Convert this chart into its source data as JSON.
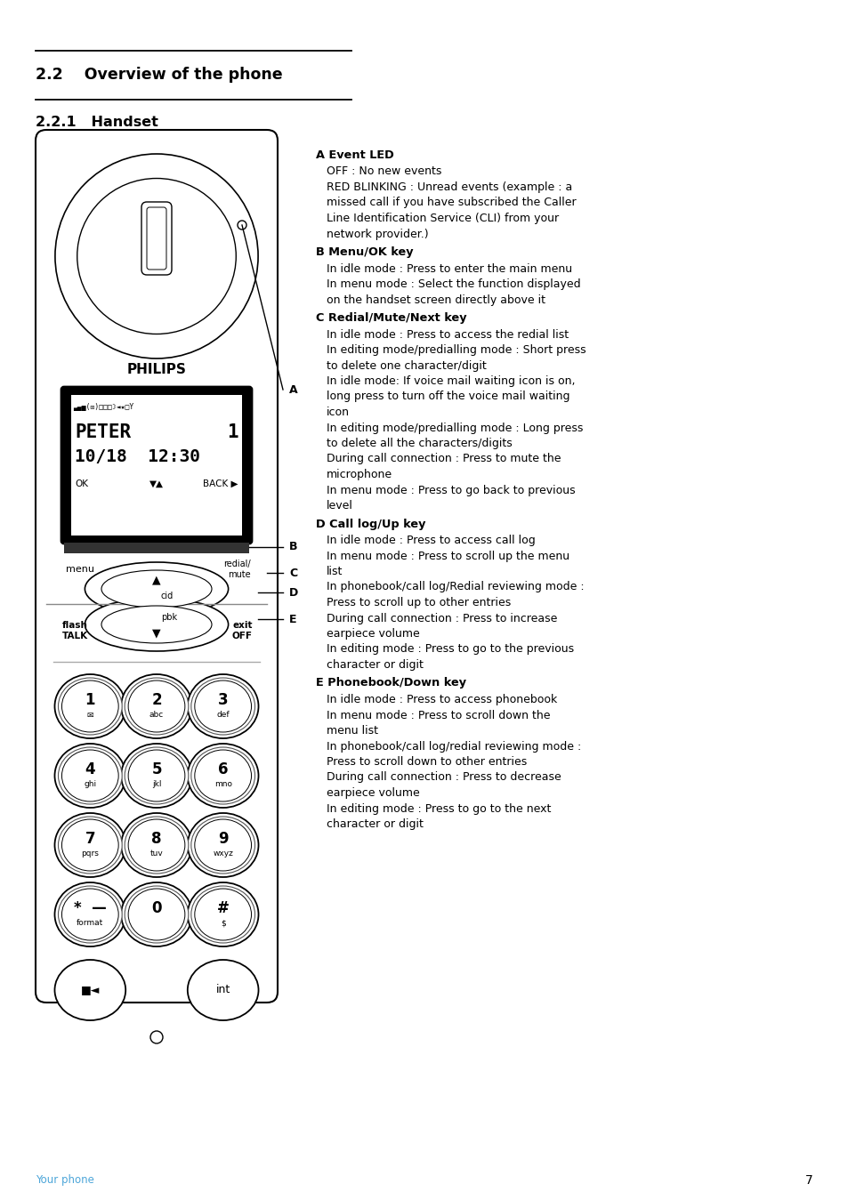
{
  "bg_color": "#ffffff",
  "title_section": "2.2    Overview of the phone",
  "subtitle_section": "2.2.1   Handset",
  "footer_text": "Your phone",
  "footer_color": "#4da6d9",
  "page_number": "7",
  "sections": [
    {
      "key": "A",
      "header": "A Event LED",
      "lines": [
        "OFF : No new events",
        "RED BLINKING : Unread events (example : a",
        "missed call if you have subscribed the Caller",
        "Line Identification Service (CLI) from your",
        "network provider.)"
      ]
    },
    {
      "key": "B",
      "header": "B Menu/OK key",
      "lines": [
        "In idle mode : Press to enter the main menu",
        "In menu mode : Select the function displayed",
        "on the handset screen directly above it"
      ]
    },
    {
      "key": "C",
      "header": "C Redial/Mute/Next key",
      "lines": [
        "In idle mode : Press to access the redial list",
        "In editing mode/predialling mode : Short press",
        "to delete one character/digit",
        "In idle mode: If voice mail waiting icon is on,",
        "long press to turn off the voice mail waiting",
        "icon",
        "In editing mode/predialling mode : Long press",
        "to delete all the characters/digits",
        "During call connection : Press to mute the",
        "microphone",
        "In menu mode : Press to go back to previous",
        "level"
      ]
    },
    {
      "key": "D",
      "header": "D Call log/Up key",
      "lines": [
        "In idle mode : Press to access call log",
        "In menu mode : Press to scroll up the menu",
        "list",
        "In phonebook/call log/Redial reviewing mode :",
        "Press to scroll up to other entries",
        "During call connection : Press to increase",
        "earpiece volume",
        "In editing mode : Press to go to the previous",
        "character or digit"
      ]
    },
    {
      "key": "E",
      "header": "E Phonebook/Down key",
      "lines": [
        "In idle mode : Press to access phonebook",
        "In menu mode : Press to scroll down the",
        "menu list",
        "In phonebook/call log/redial reviewing mode :",
        "Press to scroll down to other entries",
        "During call connection : Press to decrease",
        "earpiece volume",
        "In editing mode : Press to go to the next",
        "character or digit"
      ]
    }
  ]
}
